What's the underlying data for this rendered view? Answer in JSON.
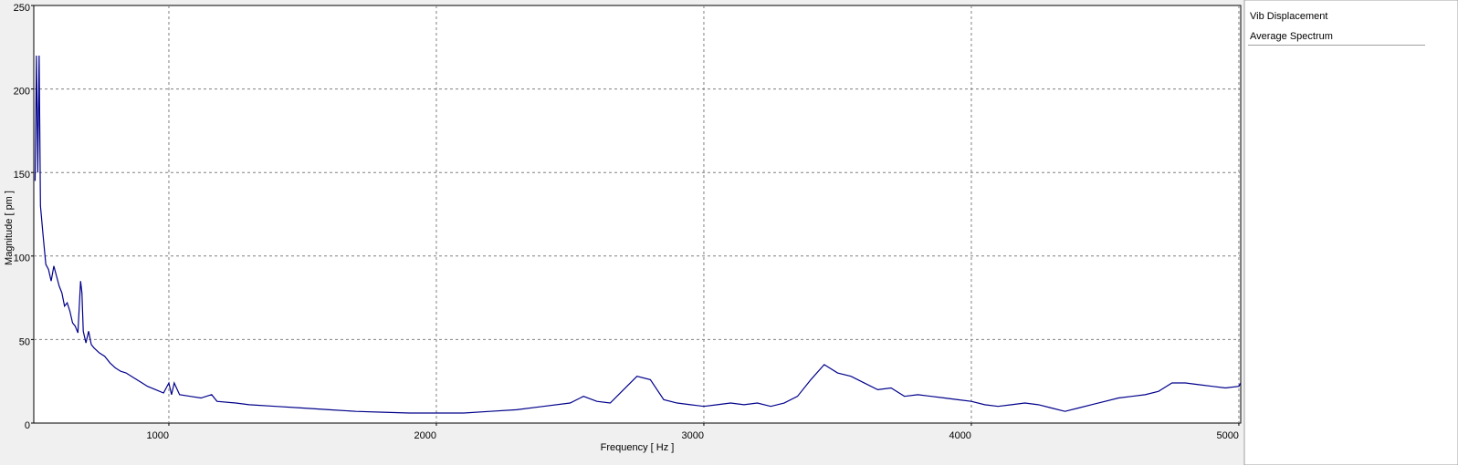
{
  "chart_data": {
    "type": "line",
    "step": true,
    "xlabel": "Frequency [ Hz ]",
    "ylabel": "Magnitude [ pm ]",
    "legend_title": "Vib Displacement",
    "x": [
      500,
      505,
      510,
      515,
      520,
      530,
      540,
      550,
      560,
      570,
      580,
      590,
      600,
      610,
      620,
      630,
      640,
      650,
      660,
      670,
      675,
      680,
      690,
      700,
      710,
      720,
      740,
      760,
      780,
      800,
      820,
      840,
      860,
      880,
      900,
      920,
      950,
      980,
      1000,
      1010,
      1020,
      1040,
      1080,
      1120,
      1160,
      1180,
      1250,
      1300,
      1400,
      1500,
      1600,
      1700,
      1800,
      1900,
      2000,
      2100,
      2200,
      2300,
      2400,
      2500,
      2550,
      2600,
      2650,
      2700,
      2750,
      2800,
      2850,
      2900,
      2950,
      3000,
      3050,
      3100,
      3150,
      3200,
      3250,
      3300,
      3350,
      3400,
      3450,
      3500,
      3550,
      3600,
      3650,
      3700,
      3750,
      3800,
      3850,
      3900,
      3950,
      4000,
      4050,
      4100,
      4150,
      4200,
      4250,
      4300,
      4350,
      4400,
      4450,
      4500,
      4550,
      4600,
      4650,
      4700,
      4750,
      4800,
      4850,
      4900,
      4950,
      5000,
      5007
    ],
    "series": [
      {
        "name": "Average Spectrum",
        "color": "#00008b",
        "values": [
          145,
          220,
          150,
          220,
          130,
          112,
          95,
          92,
          85,
          94,
          88,
          82,
          78,
          70,
          72,
          67,
          60,
          58,
          54,
          85,
          78,
          55,
          48,
          55,
          47,
          45,
          42,
          40,
          36,
          33,
          31,
          30,
          28,
          26,
          24,
          22,
          20,
          18,
          24,
          17,
          24,
          17,
          16,
          15,
          17,
          13,
          12,
          11,
          10,
          9,
          8,
          7,
          6.5,
          6,
          6,
          6,
          7,
          8,
          10,
          12,
          16,
          13,
          12,
          20,
          28,
          26,
          14,
          12,
          11,
          10,
          11,
          12,
          11,
          12,
          10,
          12,
          16,
          26,
          35,
          30,
          28,
          24,
          20,
          21,
          16,
          17,
          16,
          15,
          14,
          13,
          11,
          10,
          11,
          12,
          11,
          9,
          7,
          9,
          11,
          13,
          15,
          16,
          17,
          19,
          24,
          24,
          23,
          22,
          21,
          22,
          24
        ]
      }
    ],
    "xlim": [
      495,
      5007
    ],
    "ylim": [
      0,
      250
    ],
    "xticks": [
      1000,
      2000,
      3000,
      4000,
      5000
    ],
    "yticks": [
      0,
      50,
      100,
      150,
      200,
      250
    ],
    "grid": true
  }
}
